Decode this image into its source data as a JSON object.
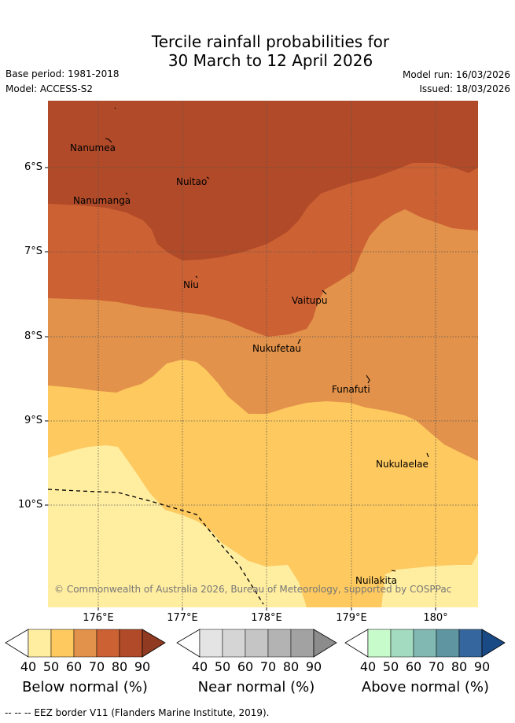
{
  "title": {
    "line1": "Tercile rainfall probabilities for",
    "line2": "30 March to 12 April 2026"
  },
  "meta": {
    "base_period": "Base period: 1981-2018",
    "model": "Model: ACCESS-S2",
    "model_run": "Model run: 16/03/2026",
    "issued": "Issued: 18/03/2026"
  },
  "map": {
    "latitude_labels": [
      "6°S",
      "7°S",
      "8°S",
      "9°S",
      "10°S"
    ],
    "longitude_labels": [
      "176°E",
      "177°E",
      "178°E",
      "179°E",
      "180°"
    ],
    "places": [
      "Nanumea",
      "Nuitao",
      "Nanumanga",
      "Niu",
      "Vaitupu",
      "Nukufetau",
      "Funafuti",
      "Nukulaelae",
      "Nuilakita"
    ],
    "copyright": "© Commonwealth of Australia 2026, Bureau of Meteorology, supported by COSPPac"
  },
  "colorbars": [
    {
      "label": "Below normal (%)",
      "ticks": [
        "40",
        "50",
        "60",
        "70",
        "80",
        "90"
      ],
      "colors": [
        "#ffeda0",
        "#fec95f",
        "#e2924a",
        "#cc6133",
        "#b04a28",
        "#8f3a21"
      ]
    },
    {
      "label": "Near normal (%)",
      "ticks": [
        "40",
        "50",
        "60",
        "70",
        "80",
        "90"
      ],
      "colors": [
        "#e4e4e4",
        "#d5d5d5",
        "#c5c5c5",
        "#b3b3b3",
        "#a2a2a2",
        "#8c8c8c"
      ]
    },
    {
      "label": "Above normal (%)",
      "ticks": [
        "40",
        "50",
        "60",
        "70",
        "80",
        "90"
      ],
      "colors": [
        "#c8fbcb",
        "#a2dbc0",
        "#81b8b2",
        "#5e95a0",
        "#35679e",
        "#1a4a86"
      ]
    }
  ],
  "footer": "-- -- -- EEZ border V11 (Flanders Marine Institute, 2019)."
}
